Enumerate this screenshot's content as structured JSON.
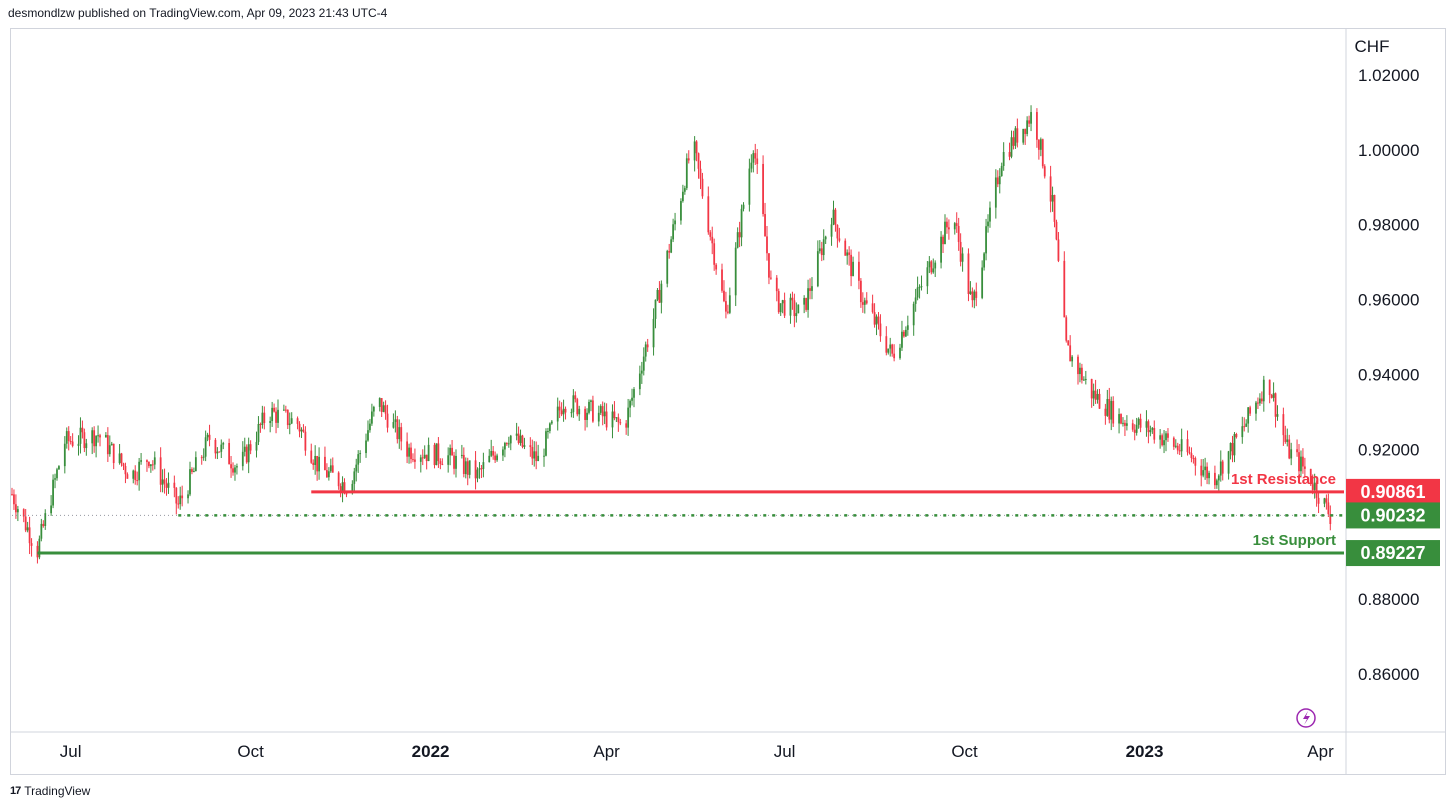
{
  "header": {
    "text": "desmondlzw published on TradingView.com, Apr 09, 2023 21:43 UTC-4"
  },
  "footer": {
    "logo": "17",
    "brand": "TradingView"
  },
  "chart_data": {
    "type": "candlestick",
    "currency": "CHF",
    "y_ticks": [
      "1.02000",
      "1.00000",
      "0.98000",
      "0.96000",
      "0.94000",
      "0.92000",
      "0.88000",
      "0.86000"
    ],
    "y_tick_values": [
      1.02,
      1.0,
      0.98,
      0.96,
      0.94,
      0.92,
      0.88,
      0.86
    ],
    "ylim": [
      0.845,
      1.032
    ],
    "x_ticks": [
      {
        "label": "Jul",
        "bold": false
      },
      {
        "label": "Oct",
        "bold": false
      },
      {
        "label": "2022",
        "bold": true
      },
      {
        "label": "Apr",
        "bold": false
      },
      {
        "label": "Jul",
        "bold": false
      },
      {
        "label": "Oct",
        "bold": false
      },
      {
        "label": "2023",
        "bold": true
      },
      {
        "label": "Apr",
        "bold": false
      }
    ],
    "x_range": [
      "2021-06",
      "2023-04"
    ],
    "price_path": [
      [
        "2021-06-01",
        0.908
      ],
      [
        "2021-06-14",
        0.893
      ],
      [
        "2021-06-28",
        0.922
      ],
      [
        "2021-07-15",
        0.924
      ],
      [
        "2021-08-01",
        0.913
      ],
      [
        "2021-08-10",
        0.918
      ],
      [
        "2021-08-25",
        0.905
      ],
      [
        "2021-09-10",
        0.923
      ],
      [
        "2021-09-25",
        0.915
      ],
      [
        "2021-10-10",
        0.93
      ],
      [
        "2021-10-25",
        0.927
      ],
      [
        "2021-11-05",
        0.915
      ],
      [
        "2021-11-20",
        0.91
      ],
      [
        "2021-12-05",
        0.933
      ],
      [
        "2021-12-20",
        0.92
      ],
      [
        "2022-01-10",
        0.918
      ],
      [
        "2022-01-25",
        0.913
      ],
      [
        "2022-02-10",
        0.924
      ],
      [
        "2022-02-25",
        0.917
      ],
      [
        "2022-03-10",
        0.933
      ],
      [
        "2022-03-25",
        0.93
      ],
      [
        "2022-04-10",
        0.926
      ],
      [
        "2022-04-25",
        0.955
      ],
      [
        "2022-05-15",
        1.002
      ],
      [
        "2022-06-01",
        0.956
      ],
      [
        "2022-06-15",
        1.002
      ],
      [
        "2022-06-25",
        0.96
      ],
      [
        "2022-07-10",
        0.956
      ],
      [
        "2022-07-25",
        0.983
      ],
      [
        "2022-08-10",
        0.96
      ],
      [
        "2022-08-25",
        0.945
      ],
      [
        "2022-09-10",
        0.965
      ],
      [
        "2022-09-25",
        0.983
      ],
      [
        "2022-10-05",
        0.958
      ],
      [
        "2022-10-20",
        0.998
      ],
      [
        "2022-11-05",
        1.01
      ],
      [
        "2022-11-15",
        0.985
      ],
      [
        "2022-11-22",
        0.947
      ],
      [
        "2022-12-05",
        0.935
      ],
      [
        "2022-12-20",
        0.928
      ],
      [
        "2023-01-05",
        0.925
      ],
      [
        "2023-01-25",
        0.918
      ],
      [
        "2023-02-05",
        0.912
      ],
      [
        "2023-02-20",
        0.925
      ],
      [
        "2023-03-05",
        0.939
      ],
      [
        "2023-03-15",
        0.92
      ],
      [
        "2023-03-25",
        0.914
      ],
      [
        "2023-04-06",
        0.9023
      ]
    ],
    "levels": [
      {
        "name": "1st Resistance",
        "value": 0.90861,
        "label": "0.90861",
        "color": "#f23645",
        "style": "solid",
        "from": "2021-11-01"
      },
      {
        "name": "",
        "value": 0.90232,
        "label": "0.90232",
        "color": "#388e3c",
        "style": "dotted",
        "from": "2021-08-25"
      },
      {
        "name": "1st Support",
        "value": 0.89227,
        "label": "0.89227",
        "color": "#388e3c",
        "style": "solid",
        "from": "2021-06-14"
      }
    ],
    "colors": {
      "up": "#388e3c",
      "down": "#f23645",
      "axis_text": "#131722",
      "grid_border": "#d1d4dc"
    }
  }
}
